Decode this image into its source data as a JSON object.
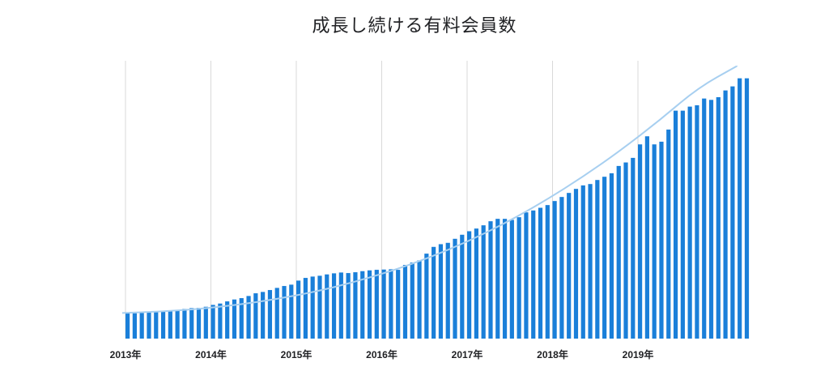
{
  "chart_data": {
    "type": "bar",
    "title": "成長し続ける有料会員数",
    "xlabel": "",
    "ylabel": "",
    "x_tick_labels": [
      "2013年",
      "2014年",
      "2015年",
      "2016年",
      "2017年",
      "2018年",
      "2019年"
    ],
    "ylim": [
      0,
      100
    ],
    "grid": "vertical",
    "legend": "none",
    "bar_color": "#1a7fd9",
    "trend_color": "#a7cff0",
    "gridline_color": "#d9d9d9",
    "values": [
      9.5,
      9.4,
      9.5,
      9.6,
      9.8,
      10.0,
      10.2,
      10.4,
      11.0,
      11.3,
      11.4,
      11.8,
      12.5,
      13.0,
      13.8,
      14.5,
      15.0,
      15.8,
      16.8,
      17.3,
      18.0,
      18.8,
      19.5,
      20.0,
      21.5,
      22.5,
      23.0,
      23.3,
      23.8,
      24.2,
      24.5,
      24.3,
      24.6,
      25.0,
      25.3,
      25.5,
      25.6,
      25.7,
      25.5,
      27.3,
      28.2,
      29.0,
      31.5,
      34.0,
      35.0,
      35.5,
      37.0,
      38.5,
      39.8,
      40.8,
      42.0,
      43.5,
      44.4,
      44.4,
      44.0,
      45.0,
      46.8,
      47.5,
      48.5,
      49.5,
      51.0,
      52.5,
      54.0,
      55.5,
      56.8,
      57.3,
      58.8,
      60.0,
      61.3,
      64.0,
      65.3,
      67.0,
      72.0,
      75.0,
      72.0,
      73.0,
      77.5,
      84.5,
      84.5,
      86.0,
      86.5,
      89.0,
      88.5,
      89.5,
      92.0,
      93.5,
      96.5,
      96.5
    ],
    "trend": [
      9.5,
      10.0,
      11.0,
      12.5,
      14.6,
      17.3,
      20.8,
      25.0,
      30.0,
      36.0,
      43.0,
      51.0,
      60.0,
      70.0,
      81.0,
      93.0,
      101.0
    ]
  }
}
